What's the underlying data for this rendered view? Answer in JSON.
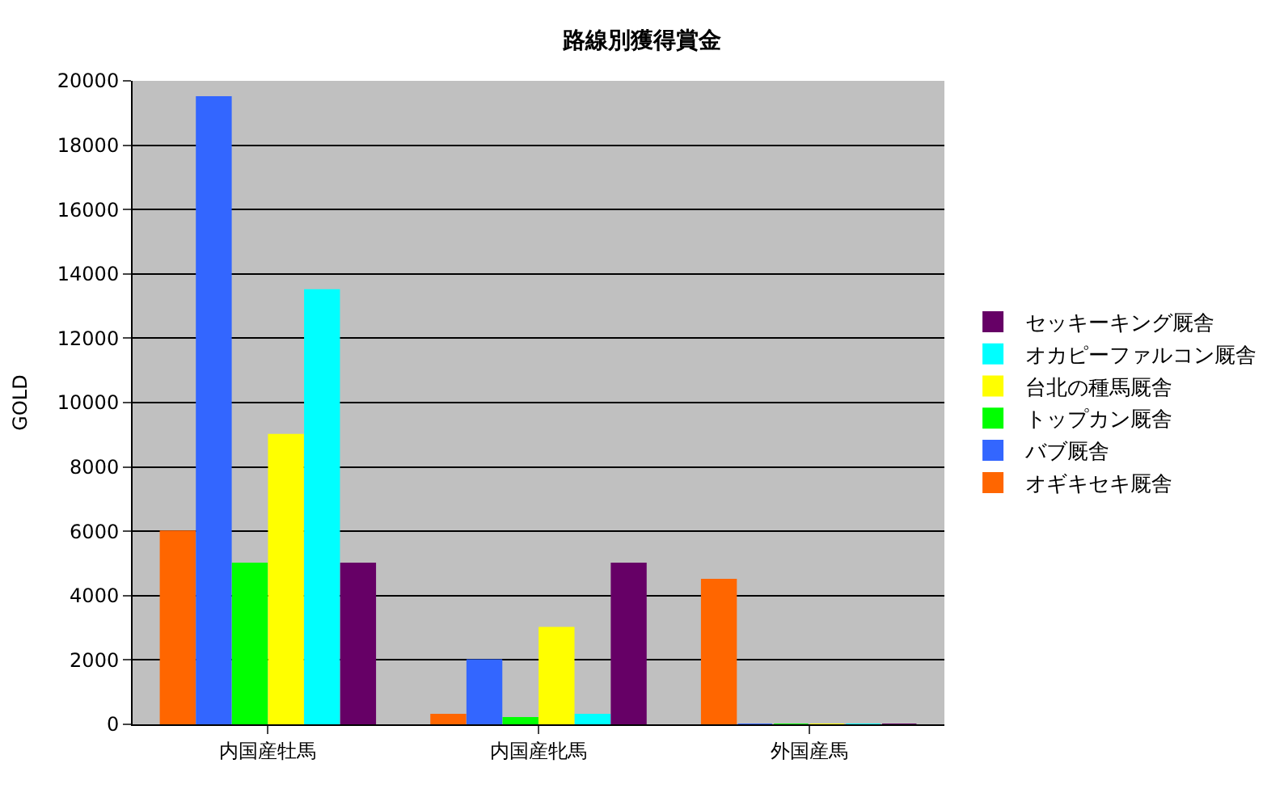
{
  "chart_data": {
    "type": "bar",
    "title": "路線別獲得賞金",
    "ylabel": "GOLD",
    "categories": [
      "内国産牡馬",
      "内国産牝馬",
      "外国産馬"
    ],
    "series": [
      {
        "name": "オギキセキ厩舎",
        "color": "#ff6600",
        "values": [
          6000,
          300,
          4500
        ]
      },
      {
        "name": "バブ厩舎",
        "color": "#3366ff",
        "values": [
          19500,
          2000,
          0
        ]
      },
      {
        "name": "トップカン厩舎",
        "color": "#00ff00",
        "values": [
          5000,
          200,
          0
        ]
      },
      {
        "name": "台北の種馬厩舎",
        "color": "#ffff00",
        "values": [
          9000,
          3000,
          0
        ]
      },
      {
        "name": "オカピーファルコン厩舎",
        "color": "#00ffff",
        "values": [
          13500,
          300,
          0
        ]
      },
      {
        "name": "セッキーキング厩舎",
        "color": "#660066",
        "values": [
          5000,
          5000,
          0
        ]
      }
    ],
    "ylim": [
      0,
      20000
    ],
    "yticks": [
      0,
      2000,
      4000,
      6000,
      8000,
      10000,
      12000,
      14000,
      16000,
      18000,
      20000
    ],
    "grid": "y",
    "legend": "right"
  }
}
